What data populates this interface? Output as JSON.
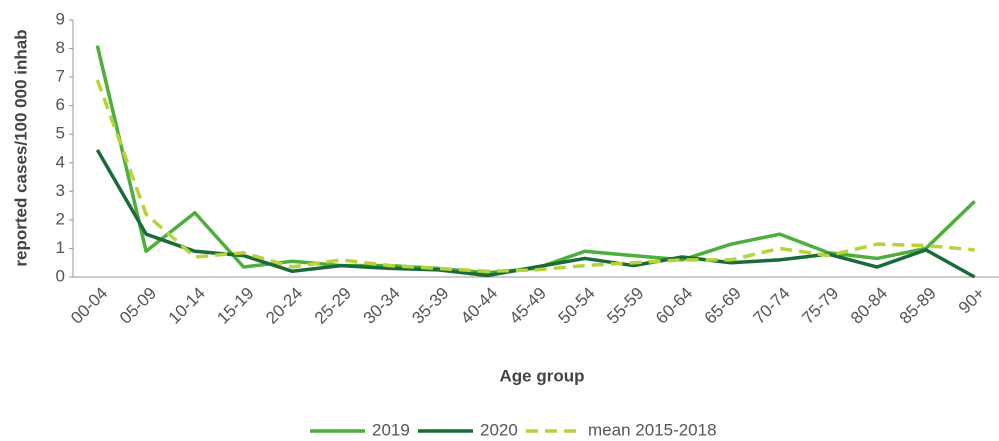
{
  "chart_data": {
    "type": "line",
    "x_label": "Age group",
    "y_label": "reported cases/100 000 inhab",
    "categories": [
      "00-04",
      "05-09",
      "10-14",
      "15-19",
      "20-24",
      "25-29",
      "30-34",
      "35-39",
      "40-44",
      "45-49",
      "50-54",
      "55-59",
      "60-64",
      "65-69",
      "70-74",
      "75-79",
      "80-84",
      "85-89",
      "90+"
    ],
    "series": [
      {
        "name": "2019",
        "color": "#4caf3c",
        "dashed": false,
        "values": [
          8.1,
          0.9,
          2.25,
          0.35,
          0.55,
          0.4,
          0.4,
          0.3,
          0.15,
          0.3,
          0.9,
          0.75,
          0.6,
          1.15,
          1.5,
          0.85,
          0.65,
          1.0,
          2.65
        ]
      },
      {
        "name": "2020",
        "color": "#1b6b3a",
        "dashed": false,
        "values": [
          4.45,
          1.5,
          0.9,
          0.75,
          0.2,
          0.4,
          0.3,
          0.25,
          0.05,
          0.35,
          0.65,
          0.4,
          0.7,
          0.5,
          0.6,
          0.8,
          0.35,
          0.95,
          0.0
        ]
      },
      {
        "name": "mean 2015-2018",
        "color": "#b8d335",
        "dashed": true,
        "values": [
          6.9,
          2.2,
          0.7,
          0.85,
          0.35,
          0.6,
          0.4,
          0.3,
          0.2,
          0.25,
          0.4,
          0.5,
          0.6,
          0.6,
          1.0,
          0.75,
          1.15,
          1.1,
          0.95
        ]
      }
    ],
    "ylim": [
      0,
      9
    ],
    "yticks": [
      0,
      1,
      2,
      3,
      4,
      5,
      6,
      7,
      8,
      9
    ],
    "grid": false,
    "legend": "bottom"
  }
}
